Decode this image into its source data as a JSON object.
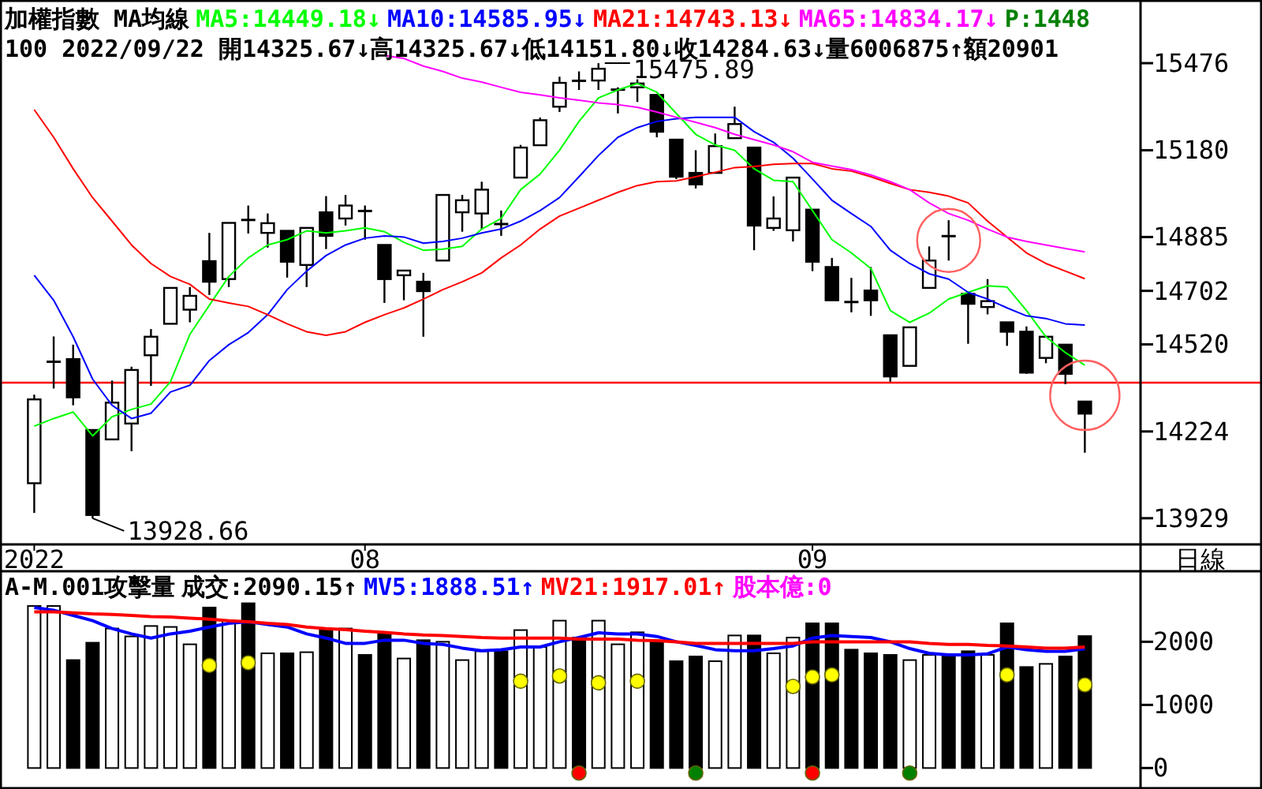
{
  "chart_data": [
    {
      "type": "candlestick",
      "title": "加權指數 MA均線",
      "subtitle": "100 2022/09/22 開14325.67↓高14325.67↓低14151.80↓收14284.63↓量6006875↑額20901",
      "xlabel": "日線",
      "legend": "top",
      "categories": [
        "2022",
        null,
        null,
        null,
        null,
        null,
        null,
        null,
        null,
        null,
        null,
        null,
        null,
        null,
        null,
        null,
        null,
        "08",
        null,
        null,
        null,
        null,
        null,
        null,
        null,
        null,
        null,
        null,
        null,
        null,
        null,
        null,
        null,
        null,
        null,
        null,
        null,
        null,
        null,
        null,
        "09",
        null,
        null,
        null,
        null,
        null,
        null,
        null,
        null,
        null,
        null,
        null,
        null,
        null,
        null
      ],
      "ohlc": [
        [
          14048,
          14349,
          13947,
          14333
        ],
        [
          14460,
          14547,
          14370,
          14462
        ],
        [
          14470,
          14519,
          14313,
          14340
        ],
        [
          14229,
          14229,
          13928.66,
          13940
        ],
        [
          14197,
          14397,
          14197,
          14322
        ],
        [
          14251,
          14444,
          14157,
          14433
        ],
        [
          14483,
          14572,
          14379,
          14546
        ],
        [
          14590,
          14712,
          14590,
          14712
        ],
        [
          14638,
          14715,
          14595,
          14685
        ],
        [
          14803,
          14899,
          14688,
          14733
        ],
        [
          14742,
          14933,
          14715,
          14933
        ],
        [
          14944,
          14992,
          14897,
          14942
        ],
        [
          14899,
          14965,
          14849,
          14932
        ],
        [
          14906,
          14906,
          14747,
          14801
        ],
        [
          14790,
          14916,
          14715,
          14916
        ],
        [
          14969,
          15024,
          14844,
          14889
        ],
        [
          14948,
          15028,
          14924,
          14992
        ],
        [
          14975,
          14992,
          14876,
          14972
        ],
        [
          14858,
          14858,
          14661,
          14742
        ],
        [
          14755,
          14771,
          14670,
          14771
        ],
        [
          14733,
          14763,
          14546,
          14701
        ],
        [
          14805,
          15031,
          14805,
          15028
        ],
        [
          14969,
          15028,
          14903,
          15010
        ],
        [
          14965,
          15073,
          14912,
          15046
        ],
        [
          14930,
          14975,
          14889,
          14928
        ],
        [
          15087,
          15198,
          15087,
          15189
        ],
        [
          15197,
          15291,
          15197,
          15282
        ],
        [
          15328,
          15430,
          15310,
          15409
        ],
        [
          15417,
          15448,
          15385,
          15415
        ],
        [
          15417,
          15475.89,
          15385,
          15457
        ],
        [
          15385,
          15394,
          15305,
          15387
        ],
        [
          15394,
          15421,
          15344,
          15407
        ],
        [
          15368,
          15368,
          15224,
          15243
        ],
        [
          15216,
          15216,
          15082,
          15090
        ],
        [
          15103,
          15180,
          15050,
          15064
        ],
        [
          15103,
          15237,
          15103,
          15194
        ],
        [
          15221,
          15328,
          15221,
          15269
        ],
        [
          15189,
          15189,
          14840,
          14924
        ],
        [
          14916,
          15023,
          14906,
          14948
        ],
        [
          14908,
          15087,
          14870,
          15087
        ],
        [
          14978,
          14978,
          14769,
          14801
        ],
        [
          14783,
          14814,
          14670,
          14670
        ],
        [
          14665,
          14746,
          14629,
          14663
        ],
        [
          14703,
          14783,
          14617,
          14670
        ],
        [
          14551,
          14551,
          14393,
          14411
        ],
        [
          14447,
          14578,
          14447,
          14578
        ],
        [
          14712,
          14853,
          14712,
          14805
        ],
        [
          14889,
          14942,
          14805,
          14887
        ],
        [
          14692,
          14692,
          14522,
          14658
        ],
        [
          14647,
          14742,
          14622,
          14667
        ],
        [
          14595,
          14595,
          14515,
          14563
        ],
        [
          14563,
          14581,
          14420,
          14424
        ],
        [
          14474,
          14546,
          14456,
          14546
        ],
        [
          14519,
          14519,
          14385,
          14420
        ],
        [
          14325.67,
          14325.67,
          14151.8,
          14284.63
        ]
      ],
      "series": [
        {
          "name": "MA5:14449.18↓",
          "type": "line",
          "color": "#00ff00",
          "values": [
            14242,
            14268,
            14290,
            14209,
            14274,
            14299,
            14317,
            14393,
            14554,
            14653,
            14751,
            14814,
            14858,
            14876,
            14906,
            14899,
            14906,
            14916,
            14903,
            14867,
            14840,
            14844,
            14853,
            14912,
            14948,
            15046,
            15099,
            15180,
            15278,
            15358,
            15385,
            15407,
            15377,
            15305,
            15234,
            15198,
            15180,
            15117,
            15078,
            15073,
            14975,
            14876,
            14831,
            14778,
            14635,
            14595,
            14626,
            14674,
            14697,
            14719,
            14715,
            14635,
            14546,
            14492,
            14449.18
          ]
        },
        {
          "name": "MA10:14585.95↓",
          "type": "line",
          "color": "#0000ff",
          "values": [
            14755,
            14670,
            14546,
            14402,
            14313,
            14268,
            14286,
            14358,
            14381,
            14465,
            14519,
            14560,
            14621,
            14706,
            14769,
            14822,
            14858,
            14881,
            14889,
            14885,
            14864,
            14870,
            14881,
            14899,
            14912,
            14939,
            14975,
            15019,
            15090,
            15162,
            15224,
            15257,
            15278,
            15287,
            15292,
            15292,
            15292,
            15243,
            15207,
            15153,
            15082,
            15010,
            14965,
            14921,
            14840,
            14795,
            14760,
            14742,
            14697,
            14674,
            14644,
            14617,
            14608,
            14590,
            14585.95
          ]
        },
        {
          "name": "MA21:14743.13↓",
          "type": "line",
          "color": "#ff0000",
          "values": [
            15318,
            15224,
            15117,
            15019,
            14939,
            14858,
            14795,
            14751,
            14724,
            14674,
            14661,
            14649,
            14621,
            14590,
            14563,
            14551,
            14563,
            14595,
            14621,
            14644,
            14674,
            14706,
            14733,
            14763,
            14814,
            14858,
            14912,
            14956,
            14983,
            15010,
            15037,
            15060,
            15073,
            15076,
            15090,
            15105,
            15121,
            15125,
            15132,
            15135,
            15135,
            15117,
            15109,
            15090,
            15067,
            15046,
            15037,
            15024,
            15001,
            14939,
            14885,
            14831,
            14795,
            14769,
            14743.13
          ]
        },
        {
          "name": "MA65:14834.17↓",
          "type": "line",
          "color": "#ff00ff",
          "values": [
            null,
            null,
            null,
            null,
            null,
            null,
            null,
            null,
            null,
            null,
            null,
            null,
            null,
            null,
            null,
            null,
            null,
            null,
            15502,
            15492,
            15466,
            15448,
            15425,
            15412,
            15394,
            15377,
            15368,
            15358,
            15350,
            15341,
            15335,
            15326,
            15310,
            15292,
            15275,
            15257,
            15234,
            15216,
            15198,
            15175,
            15139,
            15126,
            15114,
            15096,
            15073,
            15046,
            15001,
            14965,
            14942,
            14912,
            14885,
            14870,
            14858,
            14846,
            14834.17
          ]
        }
      ],
      "ylim": [
        13840,
        15680
      ],
      "yticks": [
        13929,
        14224,
        14520,
        14702,
        14885,
        15180,
        15476
      ],
      "ref_lines": [
        {
          "axis": "y",
          "value": 14390,
          "color": "#ff0000"
        }
      ],
      "annotations": [
        "P:1448",
        "15475.89",
        "13928.66"
      ]
    },
    {
      "type": "bar",
      "title": "A-M.001攻擊量",
      "legend": "top",
      "categories": [
        null,
        null,
        null,
        null,
        null,
        null,
        null,
        null,
        null,
        null,
        null,
        null,
        null,
        null,
        null,
        null,
        null,
        null,
        null,
        null,
        null,
        null,
        null,
        null,
        null,
        null,
        null,
        null,
        null,
        null,
        null,
        null,
        null,
        null,
        null,
        null,
        null,
        null,
        null,
        null,
        null,
        null,
        null,
        null,
        null,
        null,
        null,
        null,
        null,
        null,
        null,
        null,
        null,
        null,
        null
      ],
      "series": [
        {
          "name": "成交:2090.15↑",
          "type": "bar",
          "color": "#000000",
          "colors": [
            "#ffffff",
            "#ffffff",
            "#000000",
            "#000000",
            "#ffffff",
            "#ffffff",
            "#ffffff",
            "#ffffff",
            "#ffffff",
            "#000000",
            "#ffffff",
            "#000000",
            "#ffffff",
            "#000000",
            "#ffffff",
            "#000000",
            "#ffffff",
            "#000000",
            "#000000",
            "#ffffff",
            "#000000",
            "#ffffff",
            "#ffffff",
            "#ffffff",
            "#000000",
            "#ffffff",
            "#ffffff",
            "#ffffff",
            "#000000",
            "#ffffff",
            "#ffffff",
            "#ffffff",
            "#000000",
            "#000000",
            "#000000",
            "#ffffff",
            "#ffffff",
            "#000000",
            "#ffffff",
            "#ffffff",
            "#000000",
            "#000000",
            "#000000",
            "#000000",
            "#000000",
            "#ffffff",
            "#ffffff",
            "#000000",
            "#000000",
            "#ffffff",
            "#000000",
            "#000000",
            "#ffffff",
            "#000000",
            "#000000"
          ],
          "values": [
            2567,
            2567,
            1710,
            1985,
            2210,
            2085,
            2250,
            2235,
            1960,
            2542,
            2335,
            2610,
            1817,
            1817,
            1835,
            2192,
            2210,
            1792,
            2142,
            1735,
            2025,
            2000,
            1710,
            1850,
            1850,
            2185,
            1917,
            2335,
            2067,
            2335,
            1960,
            2150,
            2000,
            1692,
            1767,
            1692,
            2100,
            2100,
            1817,
            2067,
            2292,
            2292,
            1875,
            1817,
            1792,
            1710,
            1792,
            1792,
            1850,
            1792,
            2292,
            1600,
            1650,
            1767,
            2090.15
          ]
        },
        {
          "name": "MV5:1888.51↑",
          "type": "line",
          "color": "#0000ff",
          "values": [
            2542,
            2500,
            2417,
            2334,
            2209,
            2125,
            2059,
            2125,
            2167,
            2234,
            2292,
            2317,
            2275,
            2234,
            2125,
            2059,
            1975,
            1975,
            2025,
            2025,
            1975,
            1959,
            1900,
            1859,
            1875,
            1917,
            1917,
            2000,
            2067,
            2142,
            2125,
            2125,
            2084,
            2000,
            1942,
            1875,
            1859,
            1859,
            1892,
            1934,
            2059,
            2100,
            2084,
            2067,
            2000,
            1892,
            1817,
            1792,
            1792,
            1809,
            1917,
            1875,
            1850,
            1850,
            1888.51
          ]
        },
        {
          "name": "MV21:1917.01↑",
          "type": "line",
          "color": "#ff0000",
          "values": [
            2475,
            2475,
            2459,
            2442,
            2434,
            2417,
            2400,
            2392,
            2375,
            2359,
            2334,
            2317,
            2292,
            2275,
            2234,
            2209,
            2192,
            2167,
            2150,
            2125,
            2109,
            2100,
            2084,
            2067,
            2059,
            2059,
            2059,
            2059,
            2042,
            2042,
            2042,
            2025,
            2017,
            2000,
            1975,
            1975,
            1975,
            1975,
            1975,
            1975,
            2000,
            2000,
            2000,
            2000,
            2000,
            2000,
            1975,
            1959,
            1959,
            1942,
            1934,
            1917,
            1900,
            1900,
            1917.01
          ]
        },
        {
          "type": "scatter",
          "marker": "circle",
          "color": "#ffff00",
          "values": [
            null,
            null,
            null,
            null,
            null,
            null,
            null,
            null,
            null,
            1625,
            null,
            1667,
            null,
            null,
            null,
            null,
            null,
            null,
            null,
            null,
            null,
            null,
            null,
            null,
            null,
            1375,
            null,
            1458,
            null,
            1350,
            null,
            1375,
            null,
            null,
            null,
            null,
            null,
            null,
            null,
            1292,
            1442,
            1475,
            null,
            null,
            null,
            null,
            null,
            null,
            null,
            null,
            1475,
            null,
            null,
            null,
            1317
          ]
        },
        {
          "type": "scatter",
          "marker": "circle",
          "colors": [
            null,
            null,
            null,
            null,
            null,
            null,
            null,
            null,
            null,
            null,
            null,
            null,
            null,
            null,
            null,
            null,
            null,
            null,
            null,
            null,
            null,
            null,
            null,
            null,
            null,
            null,
            null,
            null,
            "#ff0000",
            null,
            null,
            null,
            null,
            null,
            "#008000",
            null,
            null,
            null,
            null,
            null,
            "#ff0000",
            null,
            null,
            null,
            null,
            "#008000",
            null,
            null,
            null,
            null,
            null,
            null,
            null,
            null,
            null
          ],
          "values": [
            null,
            null,
            null,
            null,
            null,
            null,
            null,
            null,
            null,
            null,
            null,
            null,
            null,
            null,
            null,
            null,
            null,
            null,
            null,
            null,
            null,
            null,
            null,
            null,
            null,
            null,
            null,
            null,
            -80,
            null,
            null,
            null,
            null,
            null,
            -80,
            null,
            null,
            null,
            null,
            null,
            -80,
            null,
            null,
            null,
            null,
            -80,
            null,
            null,
            null,
            null,
            null,
            null,
            null,
            null,
            null
          ]
        }
      ],
      "ylim": [
        -300,
        3100
      ],
      "yticks": [
        0,
        1000,
        2000
      ],
      "annotations": [
        "股本億:0"
      ]
    }
  ]
}
